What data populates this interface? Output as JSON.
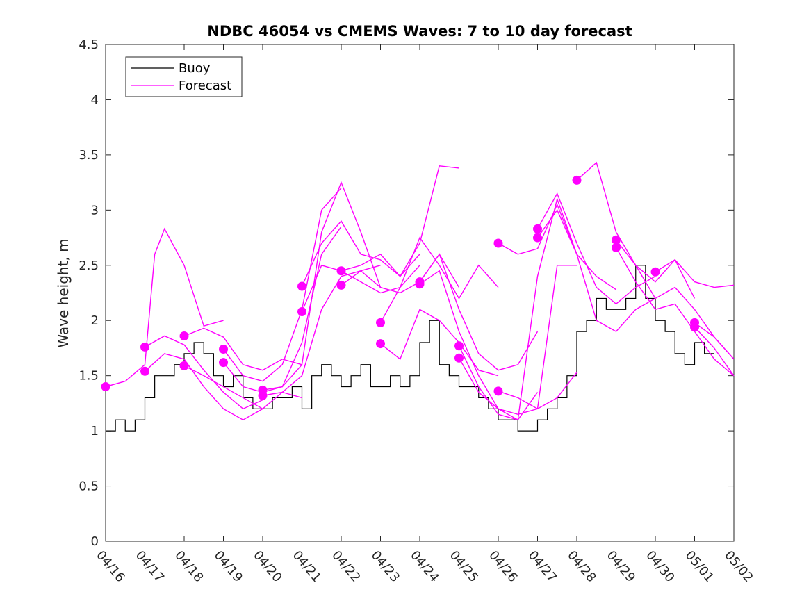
{
  "chart_data": {
    "type": "line",
    "title": "NDBC 46054 vs CMEMS Waves: 7 to 10 day forecast",
    "xlabel": "",
    "ylabel": "Wave height, m",
    "ylim": [
      0,
      4.5
    ],
    "yticks": [
      0,
      0.5,
      1,
      1.5,
      2,
      2.5,
      3,
      3.5,
      4,
      4.5
    ],
    "ytick_labels": [
      "0",
      "0.5",
      "1",
      "1.5",
      "2",
      "2.5",
      "3",
      "3.5",
      "4",
      "4.5"
    ],
    "xticks": [
      "2024-04-16",
      "2024-04-17",
      "2024-04-18",
      "2024-04-19",
      "2024-04-20",
      "2024-04-21",
      "2024-04-22",
      "2024-04-23",
      "2024-04-24",
      "2024-04-25",
      "2024-04-26",
      "2024-04-27",
      "2024-04-28",
      "2024-04-29",
      "2024-04-30",
      "2024-05-01",
      "2024-05-02"
    ],
    "xtick_labels": [
      "04/16",
      "04/17",
      "04/18",
      "04/19",
      "04/20",
      "04/21",
      "04/22",
      "04/23",
      "04/24",
      "04/25",
      "04/26",
      "04/27",
      "04/28",
      "04/29",
      "04/30",
      "05/01",
      "05/02"
    ],
    "xlim": [
      "2024-04-16",
      "2024-05-02"
    ],
    "grid": false,
    "legend_position": "top-left",
    "colors": {
      "buoy": "#000000",
      "forecast": "#ff00ff"
    },
    "series": [
      {
        "name": "Buoy",
        "role": "observation",
        "x": [
          "2024-04-16 00:00",
          "2024-04-16 06:00",
          "2024-04-16 12:00",
          "2024-04-16 18:00",
          "2024-04-17 00:00",
          "2024-04-17 06:00",
          "2024-04-17 12:00",
          "2024-04-17 18:00",
          "2024-04-18 00:00",
          "2024-04-18 06:00",
          "2024-04-18 12:00",
          "2024-04-18 18:00",
          "2024-04-19 00:00",
          "2024-04-19 06:00",
          "2024-04-19 12:00",
          "2024-04-19 18:00",
          "2024-04-20 00:00",
          "2024-04-20 06:00",
          "2024-04-20 12:00",
          "2024-04-20 18:00",
          "2024-04-21 00:00",
          "2024-04-21 06:00",
          "2024-04-21 12:00",
          "2024-04-21 18:00",
          "2024-04-22 00:00",
          "2024-04-22 06:00",
          "2024-04-22 12:00",
          "2024-04-22 18:00",
          "2024-04-23 00:00",
          "2024-04-23 06:00",
          "2024-04-23 12:00",
          "2024-04-23 18:00",
          "2024-04-24 00:00",
          "2024-04-24 06:00",
          "2024-04-24 12:00",
          "2024-04-24 18:00",
          "2024-04-25 00:00",
          "2024-04-25 06:00",
          "2024-04-25 12:00",
          "2024-04-25 18:00",
          "2024-04-26 00:00",
          "2024-04-26 06:00",
          "2024-04-26 12:00",
          "2024-04-26 18:00",
          "2024-04-27 00:00",
          "2024-04-27 06:00",
          "2024-04-27 12:00",
          "2024-04-27 18:00",
          "2024-04-28 00:00",
          "2024-04-28 06:00",
          "2024-04-28 12:00",
          "2024-04-28 18:00",
          "2024-04-29 00:00",
          "2024-04-29 06:00",
          "2024-04-29 12:00",
          "2024-04-29 18:00",
          "2024-04-30 00:00",
          "2024-04-30 06:00",
          "2024-04-30 12:00",
          "2024-04-30 18:00",
          "2024-05-01 00:00",
          "2024-05-01 06:00"
        ],
        "y": [
          1.0,
          1.1,
          1.0,
          1.1,
          1.3,
          1.5,
          1.5,
          1.6,
          1.7,
          1.8,
          1.7,
          1.5,
          1.4,
          1.5,
          1.3,
          1.2,
          1.2,
          1.3,
          1.3,
          1.4,
          1.2,
          1.5,
          1.6,
          1.5,
          1.4,
          1.5,
          1.6,
          1.4,
          1.4,
          1.5,
          1.4,
          1.5,
          1.8,
          2.0,
          1.6,
          1.5,
          1.4,
          1.4,
          1.3,
          1.2,
          1.1,
          1.1,
          1.0,
          1.0,
          1.1,
          1.2,
          1.3,
          1.5,
          1.9,
          2.0,
          2.2,
          2.1,
          2.1,
          2.2,
          2.5,
          2.2,
          2.0,
          1.9,
          1.7,
          1.6,
          1.8,
          1.7
        ]
      },
      {
        "name": "Forecast",
        "role": "forecast",
        "x": [
          "2024-04-16 00:00",
          "2024-04-16 12:00",
          "2024-04-17 00:00",
          "2024-04-17 06:00",
          "2024-04-17 12:00",
          "2024-04-18 00:00",
          "2024-04-18 12:00",
          "2024-04-19 00:00"
        ],
        "y": [
          1.4,
          1.45,
          1.6,
          2.6,
          2.83,
          2.5,
          1.95,
          2.0
        ]
      },
      {
        "name": "",
        "role": "forecast",
        "x": [
          "2024-04-17 00:00",
          "2024-04-17 12:00",
          "2024-04-18 00:00",
          "2024-04-18 12:00",
          "2024-04-19 00:00",
          "2024-04-19 12:00",
          "2024-04-20 00:00"
        ],
        "y": [
          1.76,
          1.86,
          1.78,
          1.55,
          1.35,
          1.2,
          1.28
        ]
      },
      {
        "name": "",
        "role": "forecast",
        "x": [
          "2024-04-17 00:00",
          "2024-04-17 12:00",
          "2024-04-18 00:00",
          "2024-04-18 12:00",
          "2024-04-19 00:00",
          "2024-04-19 12:00",
          "2024-04-20 00:00"
        ],
        "y": [
          1.54,
          1.7,
          1.65,
          1.4,
          1.2,
          1.1,
          1.2
        ]
      },
      {
        "name": "",
        "role": "forecast",
        "x": [
          "2024-04-18 00:00",
          "2024-04-18 12:00",
          "2024-04-19 00:00",
          "2024-04-19 12:00",
          "2024-04-20 00:00",
          "2024-04-20 12:00",
          "2024-04-21 00:00"
        ],
        "y": [
          1.86,
          1.93,
          1.85,
          1.6,
          1.55,
          1.65,
          1.6
        ]
      },
      {
        "name": "",
        "role": "forecast",
        "x": [
          "2024-04-18 00:00",
          "2024-04-18 12:00",
          "2024-04-19 00:00",
          "2024-04-19 12:00",
          "2024-04-20 00:00",
          "2024-04-20 12:00",
          "2024-04-21 00:00"
        ],
        "y": [
          1.59,
          1.5,
          1.4,
          1.3,
          1.2,
          1.35,
          1.3
        ]
      },
      {
        "name": "",
        "role": "forecast",
        "x": [
          "2024-04-19 00:00",
          "2024-04-19 12:00",
          "2024-04-20 00:00",
          "2024-04-20 12:00",
          "2024-04-21 00:00",
          "2024-04-21 12:00",
          "2024-04-22 00:00"
        ],
        "y": [
          1.74,
          1.5,
          1.45,
          1.6,
          2.1,
          3.0,
          3.2
        ]
      },
      {
        "name": "",
        "role": "forecast",
        "x": [
          "2024-04-19 00:00",
          "2024-04-19 12:00",
          "2024-04-20 00:00",
          "2024-04-20 12:00",
          "2024-04-21 00:00",
          "2024-04-21 12:00",
          "2024-04-22 00:00"
        ],
        "y": [
          1.62,
          1.4,
          1.35,
          1.4,
          1.8,
          2.6,
          2.85
        ]
      },
      {
        "name": "",
        "role": "forecast",
        "x": [
          "2024-04-20 00:00",
          "2024-04-20 12:00",
          "2024-04-21 00:00",
          "2024-04-21 12:00",
          "2024-04-22 00:00",
          "2024-04-22 12:00",
          "2024-04-23 00:00"
        ],
        "y": [
          1.37,
          1.4,
          1.6,
          2.8,
          3.25,
          2.8,
          2.3
        ]
      },
      {
        "name": "",
        "role": "forecast",
        "x": [
          "2024-04-20 00:00",
          "2024-04-20 12:00",
          "2024-04-21 00:00",
          "2024-04-21 12:00",
          "2024-04-22 00:00",
          "2024-04-22 12:00",
          "2024-04-23 00:00"
        ],
        "y": [
          1.32,
          1.35,
          1.5,
          2.1,
          2.4,
          2.45,
          2.5
        ]
      },
      {
        "name": "",
        "role": "forecast",
        "x": [
          "2024-04-21 00:00",
          "2024-04-21 12:00",
          "2024-04-22 00:00",
          "2024-04-22 12:00",
          "2024-04-23 00:00",
          "2024-04-23 12:00",
          "2024-04-24 00:00"
        ],
        "y": [
          2.31,
          2.7,
          2.9,
          2.6,
          2.55,
          2.4,
          2.6
        ]
      },
      {
        "name": "",
        "role": "forecast",
        "x": [
          "2024-04-21 00:00",
          "2024-04-21 12:00",
          "2024-04-22 00:00",
          "2024-04-22 12:00",
          "2024-04-23 00:00",
          "2024-04-23 12:00",
          "2024-04-24 00:00"
        ],
        "y": [
          2.08,
          2.5,
          2.45,
          2.35,
          2.25,
          2.3,
          2.5
        ]
      },
      {
        "name": "",
        "role": "forecast",
        "x": [
          "2024-04-22 00:00",
          "2024-04-22 12:00",
          "2024-04-23 00:00",
          "2024-04-23 12:00",
          "2024-04-24 00:00",
          "2024-04-24 12:00",
          "2024-04-25 00:00"
        ],
        "y": [
          2.45,
          2.5,
          2.6,
          2.4,
          2.7,
          3.4,
          3.38
        ]
      },
      {
        "name": "",
        "role": "forecast",
        "x": [
          "2024-04-22 00:00",
          "2024-04-22 12:00",
          "2024-04-23 00:00",
          "2024-04-23 12:00",
          "2024-04-24 00:00",
          "2024-04-24 12:00",
          "2024-04-25 00:00"
        ],
        "y": [
          2.32,
          2.45,
          2.3,
          2.25,
          2.35,
          2.6,
          2.3
        ]
      },
      {
        "name": "",
        "role": "forecast",
        "x": [
          "2024-04-23 00:00",
          "2024-04-23 12:00",
          "2024-04-24 00:00",
          "2024-04-24 12:00",
          "2024-04-25 00:00",
          "2024-04-25 12:00",
          "2024-04-26 00:00"
        ],
        "y": [
          1.98,
          2.3,
          2.75,
          2.5,
          2.2,
          2.5,
          2.3
        ]
      },
      {
        "name": "",
        "role": "forecast",
        "x": [
          "2024-04-23 00:00",
          "2024-04-23 12:00",
          "2024-04-24 00:00",
          "2024-04-24 12:00",
          "2024-04-25 00:00",
          "2024-04-25 12:00",
          "2024-04-26 00:00"
        ],
        "y": [
          1.79,
          1.65,
          2.1,
          2.0,
          1.8,
          1.55,
          1.5
        ]
      },
      {
        "name": "",
        "role": "forecast",
        "x": [
          "2024-04-24 00:00",
          "2024-04-24 12:00",
          "2024-04-25 00:00",
          "2024-04-25 12:00",
          "2024-04-26 00:00",
          "2024-04-26 12:00",
          "2024-04-27 00:00"
        ],
        "y": [
          2.35,
          2.6,
          2.1,
          1.7,
          1.55,
          1.6,
          1.9
        ]
      },
      {
        "name": "",
        "role": "forecast",
        "x": [
          "2024-04-24 00:00",
          "2024-04-24 12:00",
          "2024-04-25 00:00",
          "2024-04-25 12:00",
          "2024-04-26 00:00",
          "2024-04-26 12:00",
          "2024-04-27 00:00"
        ],
        "y": [
          2.33,
          2.45,
          1.9,
          1.5,
          1.2,
          1.1,
          1.35
        ]
      },
      {
        "name": "",
        "role": "forecast",
        "x": [
          "2024-04-25 00:00",
          "2024-04-25 12:00",
          "2024-04-26 00:00",
          "2024-04-26 12:00",
          "2024-04-27 00:00",
          "2024-04-27 12:00",
          "2024-04-28 00:00"
        ],
        "y": [
          1.77,
          1.4,
          1.15,
          1.1,
          2.4,
          3.1,
          2.6
        ]
      },
      {
        "name": "",
        "role": "forecast",
        "x": [
          "2024-04-25 00:00",
          "2024-04-25 12:00",
          "2024-04-26 00:00",
          "2024-04-26 12:00",
          "2024-04-27 00:00",
          "2024-04-27 12:00",
          "2024-04-28 00:00"
        ],
        "y": [
          1.66,
          1.35,
          1.2,
          1.15,
          1.2,
          2.5,
          2.5
        ]
      },
      {
        "name": "",
        "role": "forecast",
        "x": [
          "2024-04-26 00:00",
          "2024-04-26 12:00",
          "2024-04-27 00:00",
          "2024-04-27 12:00",
          "2024-04-28 00:00",
          "2024-04-28 12:00",
          "2024-04-29 00:00"
        ],
        "y": [
          2.7,
          2.6,
          2.65,
          3.05,
          2.6,
          2.4,
          2.28
        ]
      },
      {
        "name": "",
        "role": "forecast",
        "x": [
          "2024-04-26 00:00",
          "2024-04-26 12:00",
          "2024-04-27 00:00",
          "2024-04-27 12:00",
          "2024-04-28 00:00"
        ],
        "y": [
          1.36,
          1.3,
          1.2,
          1.3,
          1.53
        ]
      },
      {
        "name": "",
        "role": "forecast",
        "x": [
          "2024-04-27 00:00",
          "2024-04-27 12:00",
          "2024-04-28 00:00",
          "2024-04-28 12:00",
          "2024-04-29 00:00",
          "2024-04-29 12:00",
          "2024-04-30 00:00"
        ],
        "y": [
          2.83,
          3.15,
          2.7,
          2.3,
          2.15,
          2.3,
          2.4
        ]
      },
      {
        "name": "",
        "role": "forecast",
        "x": [
          "2024-04-27 00:00",
          "2024-04-27 12:00",
          "2024-04-28 00:00",
          "2024-04-28 12:00",
          "2024-04-29 00:00",
          "2024-04-29 12:00",
          "2024-04-30 00:00"
        ],
        "y": [
          2.75,
          3.0,
          2.6,
          2.0,
          1.9,
          2.1,
          2.2
        ]
      },
      {
        "name": "",
        "role": "forecast",
        "x": [
          "2024-04-28 00:00",
          "2024-04-28 12:00",
          "2024-04-29 00:00",
          "2024-04-29 12:00",
          "2024-04-30 00:00",
          "2024-04-30 12:00",
          "2024-05-01 00:00"
        ],
        "y": [
          3.27,
          3.43,
          2.8,
          2.5,
          2.35,
          2.55,
          2.2
        ]
      },
      {
        "name": "",
        "role": "forecast",
        "x": [
          "2024-04-29 00:00",
          "2024-04-29 12:00",
          "2024-04-30 00:00",
          "2024-04-30 12:00",
          "2024-05-01 00:00",
          "2024-05-01 12:00",
          "2024-05-02 00:00"
        ],
        "y": [
          2.73,
          2.5,
          2.2,
          2.3,
          2.1,
          1.85,
          1.65
        ]
      },
      {
        "name": "",
        "role": "forecast",
        "x": [
          "2024-04-29 00:00",
          "2024-04-29 12:00",
          "2024-04-30 00:00",
          "2024-04-30 12:00",
          "2024-05-01 00:00",
          "2024-05-01 12:00",
          "2024-05-02 00:00"
        ],
        "y": [
          2.66,
          2.35,
          2.1,
          2.15,
          1.9,
          1.65,
          1.5
        ]
      },
      {
        "name": "",
        "role": "forecast",
        "x": [
          "2024-04-30 00:00",
          "2024-04-30 12:00",
          "2024-05-01 00:00",
          "2024-05-01 12:00",
          "2024-05-02 00:00"
        ],
        "y": [
          2.44,
          2.55,
          2.35,
          2.3,
          2.32
        ]
      },
      {
        "name": "",
        "role": "forecast",
        "x": [
          "2024-05-01 00:00",
          "2024-05-01 12:00",
          "2024-05-02 00:00"
        ],
        "y": [
          1.98,
          1.85,
          1.65
        ]
      },
      {
        "name": "",
        "role": "forecast",
        "x": [
          "2024-05-01 00:00",
          "2024-05-01 12:00",
          "2024-05-02 00:00"
        ],
        "y": [
          1.94,
          1.75,
          1.5
        ]
      }
    ]
  }
}
